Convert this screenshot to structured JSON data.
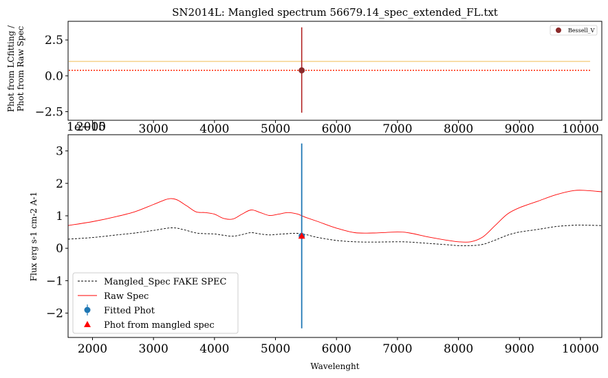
{
  "chart_data": [
    {
      "type": "scatter",
      "title": "SN2014L: Mangled spectrum 56679.14_spec_extended_FL.txt",
      "ylabel_line1": "Phot from LCfitting /",
      "ylabel_line2": "Phot from Raw Spec",
      "xlim": [
        1600,
        10350
      ],
      "ylim": [
        -3.1,
        3.8
      ],
      "xticks": [
        "2000",
        "3000",
        "4000",
        "5000",
        "6000",
        "7000",
        "8000",
        "9000",
        "10000"
      ],
      "xtick_values": [
        2000,
        3000,
        4000,
        5000,
        6000,
        7000,
        8000,
        9000,
        10000
      ],
      "yticks": [
        "2.5",
        "0.0",
        "−2.5"
      ],
      "ytick_values": [
        2.5,
        0.0,
        -2.5
      ],
      "offset_label": "1e−15",
      "hline_orange": 1.0,
      "hline_red_dotted": 0.38,
      "points": [
        {
          "name": "Bessell_V",
          "x": 5430,
          "y": 0.38,
          "yerr_low": 2.95,
          "yerr_high": 3.0,
          "color": "#8b2a2a"
        }
      ],
      "legend": [
        "Bessell_V"
      ],
      "legend_loc": "upper right",
      "colors": {
        "point": "#8b2a2a",
        "errorbar": "#b22222",
        "orange_line": "#f5d28a",
        "red_line": "#ff2200"
      }
    },
    {
      "type": "line",
      "xlabel": "Wavelenght",
      "ylabel": "Flux erg s-1 cm-2 A-1",
      "xlim": [
        1600,
        10350
      ],
      "ylim": [
        -2.75,
        3.5
      ],
      "xticks": [
        "2000",
        "3000",
        "4000",
        "5000",
        "6000",
        "7000",
        "8000",
        "9000",
        "10000"
      ],
      "xtick_values": [
        2000,
        3000,
        4000,
        5000,
        6000,
        7000,
        8000,
        9000,
        10000
      ],
      "yticks": [
        "3",
        "2",
        "1",
        "0",
        "−1",
        "−2"
      ],
      "ytick_values": [
        3,
        2,
        1,
        0,
        -1,
        -2
      ],
      "series": [
        {
          "name": "Mangled_Spec FAKE SPEC",
          "style": "dashed",
          "color": "#000000",
          "x": [
            1600,
            2000,
            2400,
            2700,
            3000,
            3300,
            3500,
            3700,
            3850,
            4000,
            4150,
            4300,
            4450,
            4600,
            4750,
            4900,
            5050,
            5200,
            5350,
            5500,
            5700,
            6000,
            6300,
            6600,
            7000,
            7200,
            7500,
            7800,
            8000,
            8200,
            8400,
            8600,
            8800,
            9000,
            9300,
            9600,
            9900,
            10100,
            10350
          ],
          "y": [
            0.28,
            0.33,
            0.41,
            0.47,
            0.55,
            0.63,
            0.57,
            0.47,
            0.45,
            0.44,
            0.4,
            0.37,
            0.42,
            0.48,
            0.44,
            0.41,
            0.43,
            0.45,
            0.46,
            0.42,
            0.33,
            0.24,
            0.2,
            0.19,
            0.2,
            0.19,
            0.15,
            0.11,
            0.08,
            0.08,
            0.12,
            0.25,
            0.4,
            0.5,
            0.58,
            0.67,
            0.71,
            0.71,
            0.7
          ]
        },
        {
          "name": "Raw Spec",
          "style": "solid",
          "color": "#ff0000",
          "x": [
            1600,
            2000,
            2400,
            2700,
            3000,
            3200,
            3300,
            3400,
            3550,
            3700,
            3850,
            4000,
            4150,
            4300,
            4450,
            4600,
            4750,
            4900,
            5050,
            5200,
            5350,
            5500,
            5700,
            6000,
            6300,
            6600,
            7000,
            7200,
            7500,
            7800,
            8000,
            8200,
            8400,
            8600,
            8800,
            9000,
            9300,
            9600,
            9900,
            10100,
            10350
          ],
          "y": [
            0.7,
            0.82,
            0.98,
            1.13,
            1.35,
            1.5,
            1.53,
            1.48,
            1.3,
            1.12,
            1.1,
            1.05,
            0.92,
            0.9,
            1.05,
            1.18,
            1.1,
            1.01,
            1.05,
            1.1,
            1.06,
            0.95,
            0.82,
            0.62,
            0.48,
            0.47,
            0.5,
            0.47,
            0.35,
            0.25,
            0.2,
            0.2,
            0.35,
            0.7,
            1.05,
            1.25,
            1.45,
            1.65,
            1.78,
            1.78,
            1.74
          ]
        }
      ],
      "points": [
        {
          "name": "Fitted Phot",
          "x": 5430,
          "y": 0.38,
          "yerr_low": 2.85,
          "yerr_high": 2.85,
          "color": "#1f77b4",
          "marker": "circle"
        },
        {
          "name": "Phot from mangled spec",
          "x": 5430,
          "y": 0.38,
          "color": "#ff0000",
          "marker": "triangle"
        }
      ],
      "legend": [
        "Mangled_Spec FAKE SPEC",
        "Raw Spec",
        "Fitted Phot",
        "Phot from mangled spec"
      ],
      "legend_loc": "lower left",
      "colors": {
        "mangled": "#000000",
        "raw": "#ff0000",
        "fitted": "#1f77b4",
        "mangled_phot": "#ff0000"
      }
    }
  ]
}
